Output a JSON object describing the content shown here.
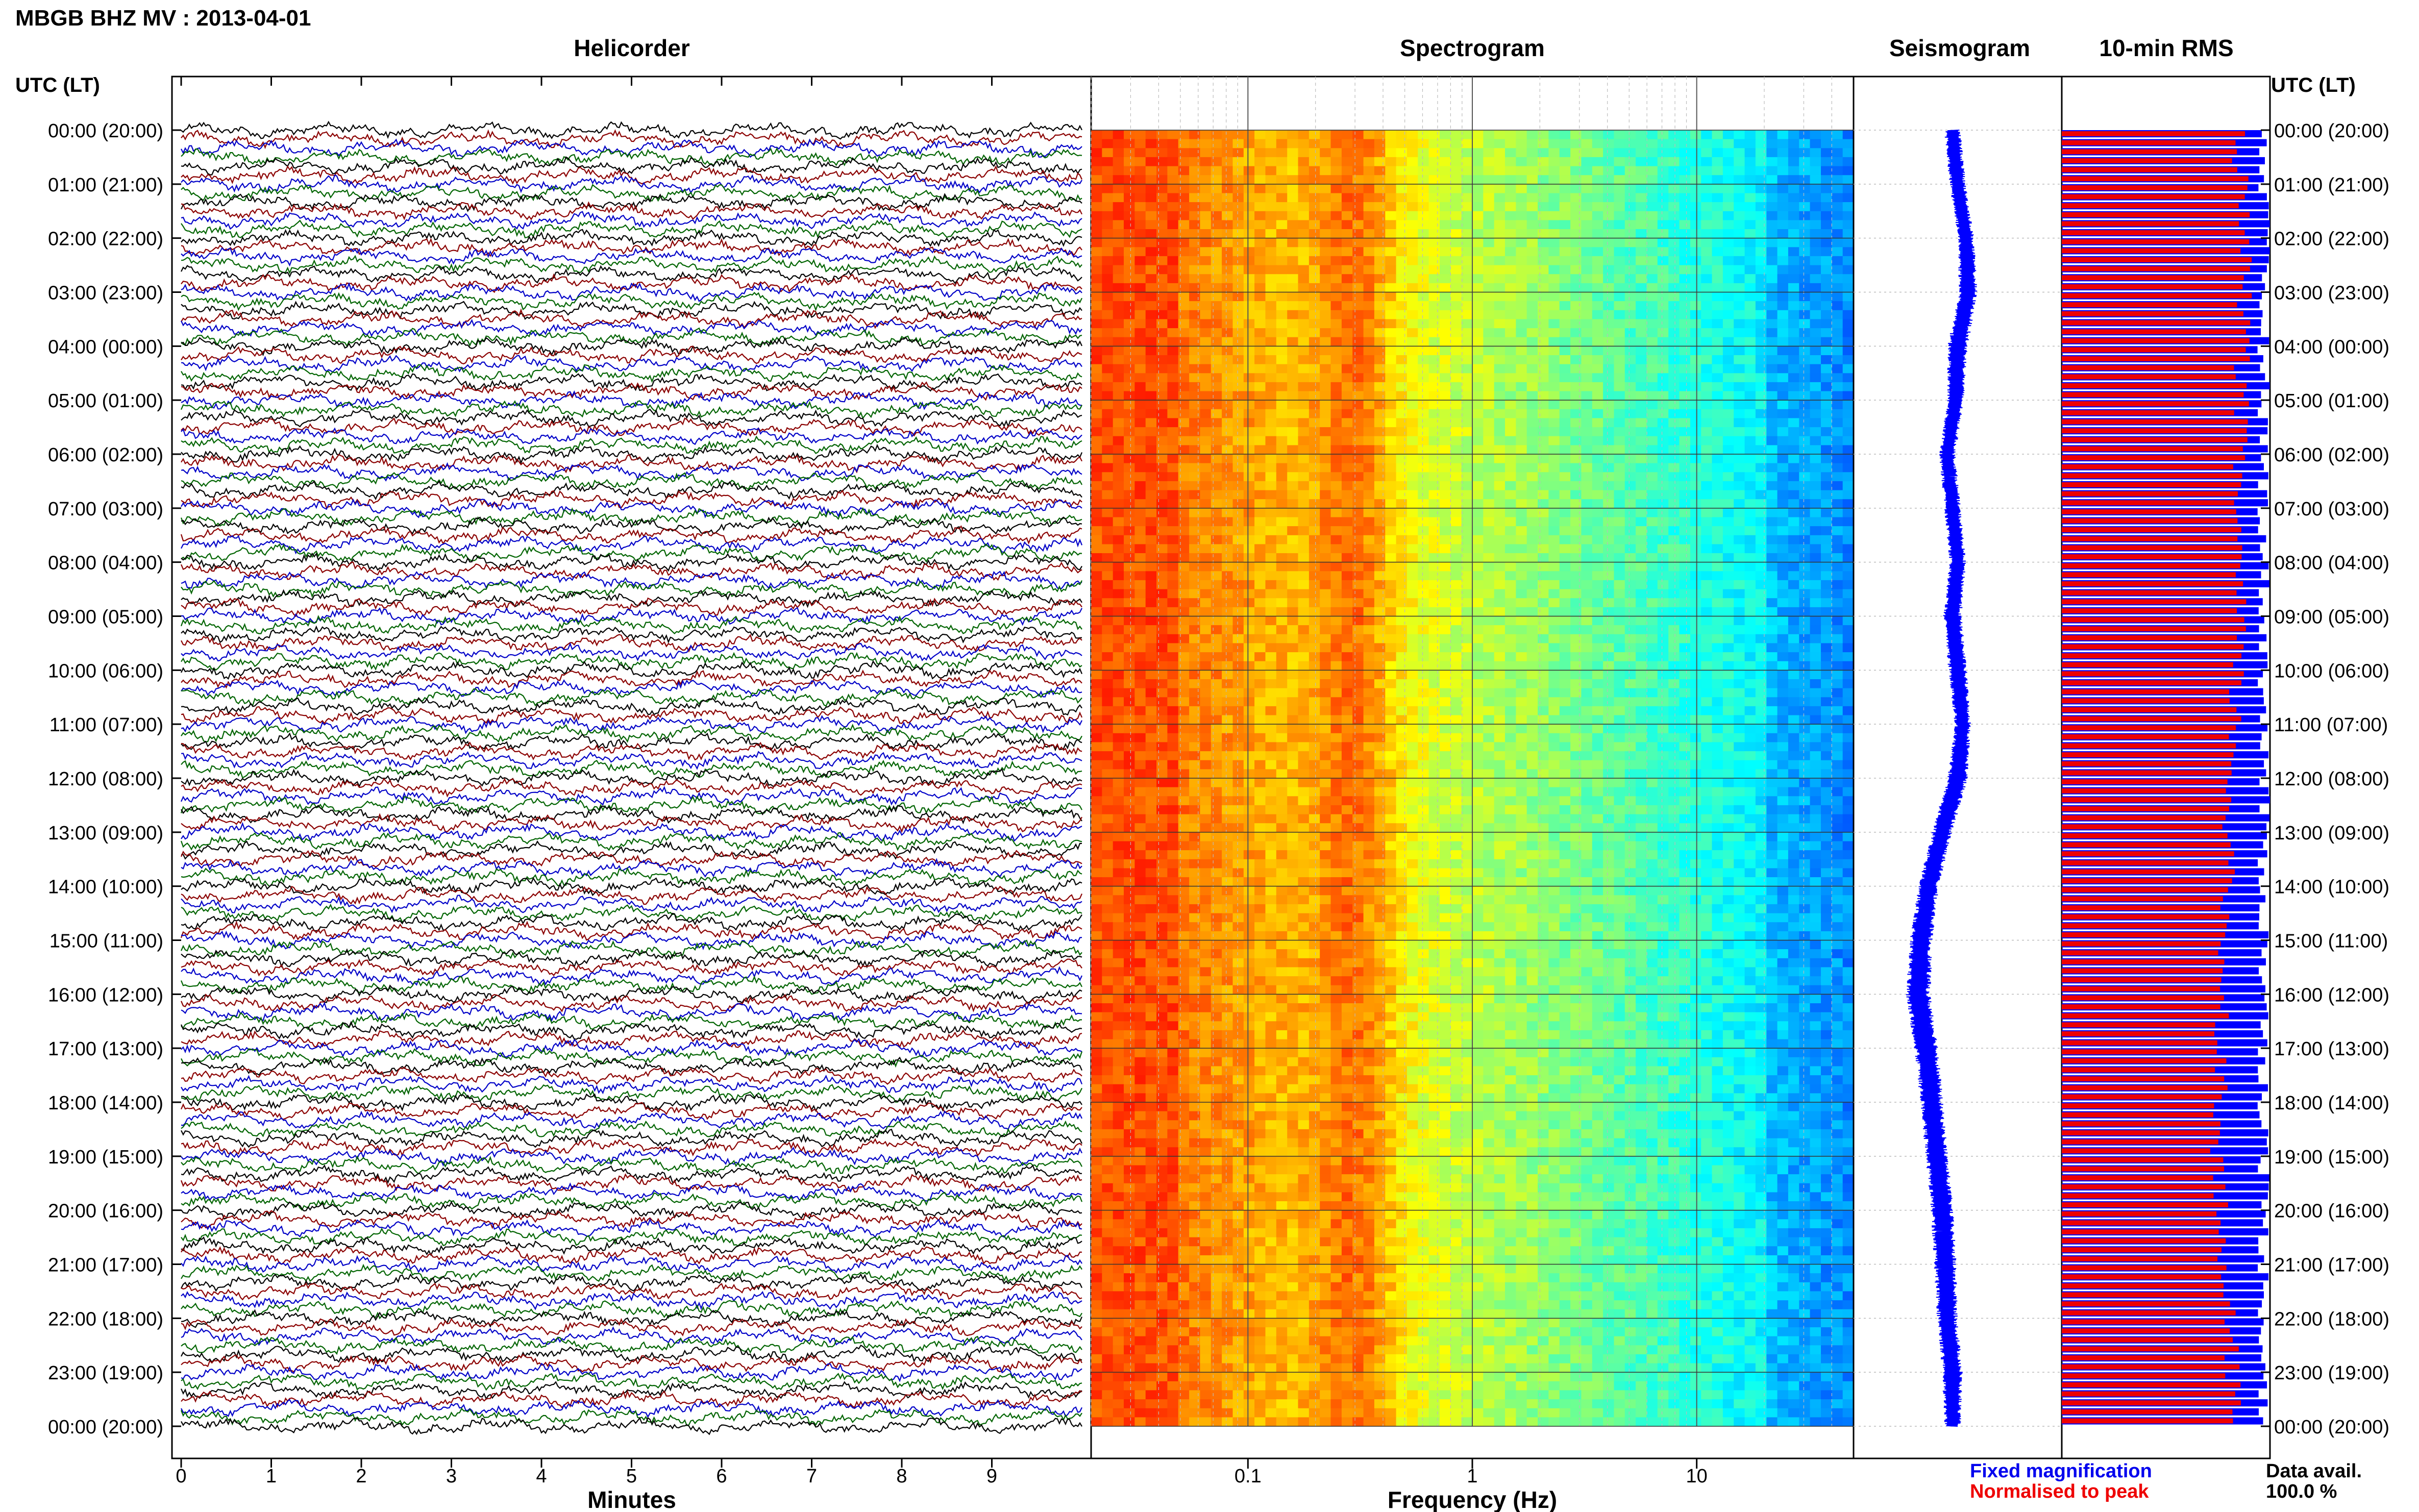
{
  "header": {
    "station_title": "MBGB BHZ MV : 2013-04-01",
    "left_axis_header": "UTC (LT)",
    "right_axis_header": "UTC (LT)"
  },
  "panels": {
    "helicorder_title": "Helicorder",
    "spectrogram_title": "Spectrogram",
    "seismogram_title": "Seismogram",
    "rms_title": "10-min RMS"
  },
  "axes": {
    "helicorder_xlabel": "Minutes",
    "spectrogram_xlabel": "Frequency (Hz)"
  },
  "legend": {
    "fixed_label": "Fixed magnification",
    "normalised_label": "Normalised to peak",
    "fixed_color": "#0000ee",
    "normalised_color": "#ee0000",
    "data_avail_label": "Data avail.",
    "data_avail_value": "100.0 %"
  },
  "chart_data": [
    {
      "type": "line",
      "panel": "helicorder",
      "x_label": "Minutes",
      "x_ticks": [
        "0",
        "1",
        "2",
        "3",
        "4",
        "5",
        "6",
        "7",
        "8",
        "9"
      ],
      "xlim": [
        0,
        10
      ],
      "lines_per_hour": 6,
      "trace_colors": [
        "#000000",
        "#8b0000",
        "#0000c8",
        "#006400"
      ],
      "time_ticks_utc": [
        "00:00 (20:00)",
        "01:00 (21:00)",
        "02:00 (22:00)",
        "03:00 (23:00)",
        "04:00 (00:00)",
        "05:00 (01:00)",
        "06:00 (02:00)",
        "07:00 (03:00)",
        "08:00 (04:00)",
        "09:00 (05:00)",
        "10:00 (06:00)",
        "11:00 (07:00)",
        "12:00 (08:00)",
        "13:00 (09:00)",
        "14:00 (10:00)",
        "15:00 (11:00)",
        "16:00 (12:00)",
        "17:00 (13:00)",
        "18:00 (14:00)",
        "19:00 (15:00)",
        "20:00 (16:00)",
        "21:00 (17:00)",
        "22:00 (18:00)",
        "23:00 (19:00)",
        "00:00 (20:00)"
      ]
    },
    {
      "type": "heatmap",
      "panel": "spectrogram",
      "x_label": "Frequency (Hz)",
      "x_scale": "log",
      "xlim": [
        0.02,
        50
      ],
      "x_ticks": [
        "0.1",
        "1",
        "10"
      ],
      "x_tick_values": [
        0.1,
        1,
        10
      ],
      "colormap": "jet",
      "peak_band_hz": [
        0.2,
        0.45
      ],
      "grid": true
    },
    {
      "type": "line",
      "panel": "seismogram",
      "color": "#0000ff",
      "hourly_offset": [
        0.05,
        0.0,
        -0.08,
        -0.1,
        0.0,
        0.02,
        0.1,
        0.05,
        0.0,
        0.05,
        0.0,
        -0.05,
        0.0,
        0.15,
        0.28,
        0.35,
        0.38,
        0.3,
        0.25,
        0.2,
        0.15,
        0.12,
        0.1,
        0.05,
        0.05
      ],
      "hourly_amplitude": [
        0.08,
        0.08,
        0.08,
        0.09,
        0.1,
        0.08,
        0.08,
        0.08,
        0.08,
        0.09,
        0.09,
        0.08,
        0.1,
        0.1,
        0.1,
        0.11,
        0.12,
        0.12,
        0.11,
        0.11,
        0.11,
        0.11,
        0.1,
        0.1,
        0.08
      ]
    },
    {
      "type": "bar",
      "panel": "10-min RMS",
      "orientation": "horizontal",
      "bins": 144,
      "series": [
        {
          "name": "Fixed magnification",
          "color": "#0000ff"
        },
        {
          "name": "Normalised to peak",
          "color": "#ee0000"
        }
      ],
      "normalised_hourly": [
        0.85,
        0.86,
        0.87,
        0.88,
        0.87,
        0.86,
        0.85,
        0.85,
        0.84,
        0.85,
        0.84,
        0.83,
        0.82,
        0.8,
        0.79,
        0.78,
        0.78,
        0.77,
        0.76,
        0.75,
        0.76,
        0.77,
        0.8,
        0.82,
        0.84
      ],
      "fixed_fraction": 1.0
    }
  ]
}
